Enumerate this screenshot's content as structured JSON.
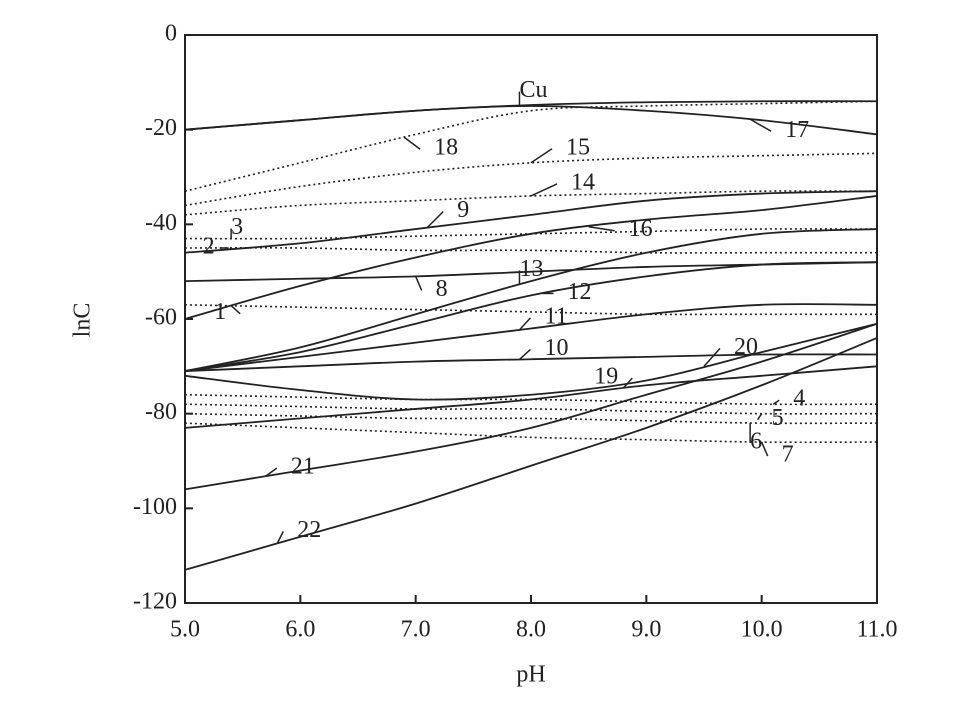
{
  "chart_data": {
    "type": "line",
    "x_label": "pH",
    "y_label": "lnC",
    "xlim": [
      5,
      11
    ],
    "ylim": [
      -120,
      0
    ],
    "xticks": [
      {
        "value": 5,
        "label": "5.0"
      },
      {
        "value": 6,
        "label": "6.0"
      },
      {
        "value": 7,
        "label": "7.0"
      },
      {
        "value": 8,
        "label": "8.0"
      },
      {
        "value": 9,
        "label": "9.0"
      },
      {
        "value": 10,
        "label": "10.0"
      },
      {
        "value": 11,
        "label": "11.0"
      }
    ],
    "yticks": [
      0,
      -20,
      -40,
      -60,
      -80,
      -100,
      -120
    ],
    "grid": false,
    "x": [
      5,
      6,
      7,
      8,
      9,
      10,
      11
    ],
    "series": [
      {
        "name": "Cu",
        "color": "#222",
        "dashed": false,
        "values": [
          -20,
          -18,
          -16,
          -14.8,
          -14.2,
          -14,
          -14
        ]
      },
      {
        "name": "17",
        "color": "#222",
        "dashed": false,
        "values": [
          -20,
          -18,
          -16,
          -15,
          -16,
          -18,
          -21
        ]
      },
      {
        "name": "18",
        "color": "#222",
        "dashed": true,
        "values": [
          -33,
          -27,
          -21,
          -16,
          -15,
          -14.5,
          -14
        ]
      },
      {
        "name": "15",
        "color": "#222",
        "dashed": true,
        "values": [
          -36,
          -32,
          -29,
          -27,
          -26,
          -25.5,
          -25
        ]
      },
      {
        "name": "14",
        "color": "#222",
        "dashed": true,
        "values": [
          -38,
          -36,
          -35,
          -34,
          -33.5,
          -33,
          -33
        ]
      },
      {
        "name": "9",
        "color": "#222",
        "dashed": false,
        "values": [
          -46,
          -44,
          -41,
          -38,
          -35,
          -33.5,
          -33
        ]
      },
      {
        "name": "3",
        "color": "#222",
        "dashed": true,
        "values": [
          -43,
          -43,
          -42.5,
          -42,
          -41.5,
          -41,
          -41
        ]
      },
      {
        "name": "2",
        "color": "#222",
        "dashed": true,
        "values": [
          -45,
          -45,
          -45.5,
          -45.5,
          -46,
          -46,
          -46
        ]
      },
      {
        "name": "16",
        "color": "#222",
        "dashed": false,
        "values": [
          -60,
          -53,
          -47,
          -42,
          -39,
          -37,
          -34
        ]
      },
      {
        "name": "8",
        "color": "#222",
        "dashed": false,
        "values": [
          -52,
          -51.5,
          -51,
          -50,
          -49,
          -48.5,
          -48
        ]
      },
      {
        "name": "1",
        "color": "#222",
        "dashed": true,
        "values": [
          -57,
          -57.5,
          -58,
          -58.5,
          -59,
          -59,
          -59
        ]
      },
      {
        "name": "13",
        "color": "#222",
        "dashed": false,
        "values": [
          -71,
          -66,
          -59,
          -52,
          -46,
          -42,
          -41
        ]
      },
      {
        "name": "12",
        "color": "#222",
        "dashed": false,
        "values": [
          -71,
          -67,
          -61,
          -55,
          -51,
          -48.5,
          -48
        ]
      },
      {
        "name": "11",
        "color": "#222",
        "dashed": false,
        "values": [
          -71,
          -68,
          -65,
          -62,
          -59,
          -57,
          -57
        ]
      },
      {
        "name": "10",
        "color": "#222",
        "dashed": false,
        "values": [
          -71,
          -70,
          -69,
          -68.5,
          -68,
          -67.5,
          -67.5
        ]
      },
      {
        "name": "20",
        "color": "#222",
        "dashed": false,
        "values": [
          -72,
          -75,
          -77,
          -76,
          -73,
          -67,
          -61
        ]
      },
      {
        "name": "19",
        "color": "#222",
        "dashed": false,
        "values": [
          -83,
          -81,
          -79,
          -77,
          -74,
          -72,
          -70
        ]
      },
      {
        "name": "4",
        "color": "#222",
        "dashed": true,
        "values": [
          -76,
          -76.5,
          -77,
          -77,
          -77.5,
          -78,
          -78
        ]
      },
      {
        "name": "5",
        "color": "#222",
        "dashed": true,
        "values": [
          -78,
          -78.5,
          -79,
          -79,
          -79.5,
          -80,
          -80
        ]
      },
      {
        "name": "6",
        "color": "#222",
        "dashed": true,
        "values": [
          -80,
          -80.5,
          -81,
          -81,
          -81.5,
          -82,
          -82
        ]
      },
      {
        "name": "7",
        "color": "#222",
        "dashed": true,
        "values": [
          -82,
          -83,
          -84,
          -85,
          -85.5,
          -86,
          -86
        ]
      },
      {
        "name": "21",
        "color": "#222",
        "dashed": false,
        "values": [
          -96,
          -92,
          -88,
          -83,
          -76,
          -69,
          -61
        ]
      },
      {
        "name": "22",
        "color": "#222",
        "dashed": false,
        "values": [
          -113,
          -106,
          -99,
          -91,
          -83,
          -74,
          -64
        ]
      }
    ]
  }
}
